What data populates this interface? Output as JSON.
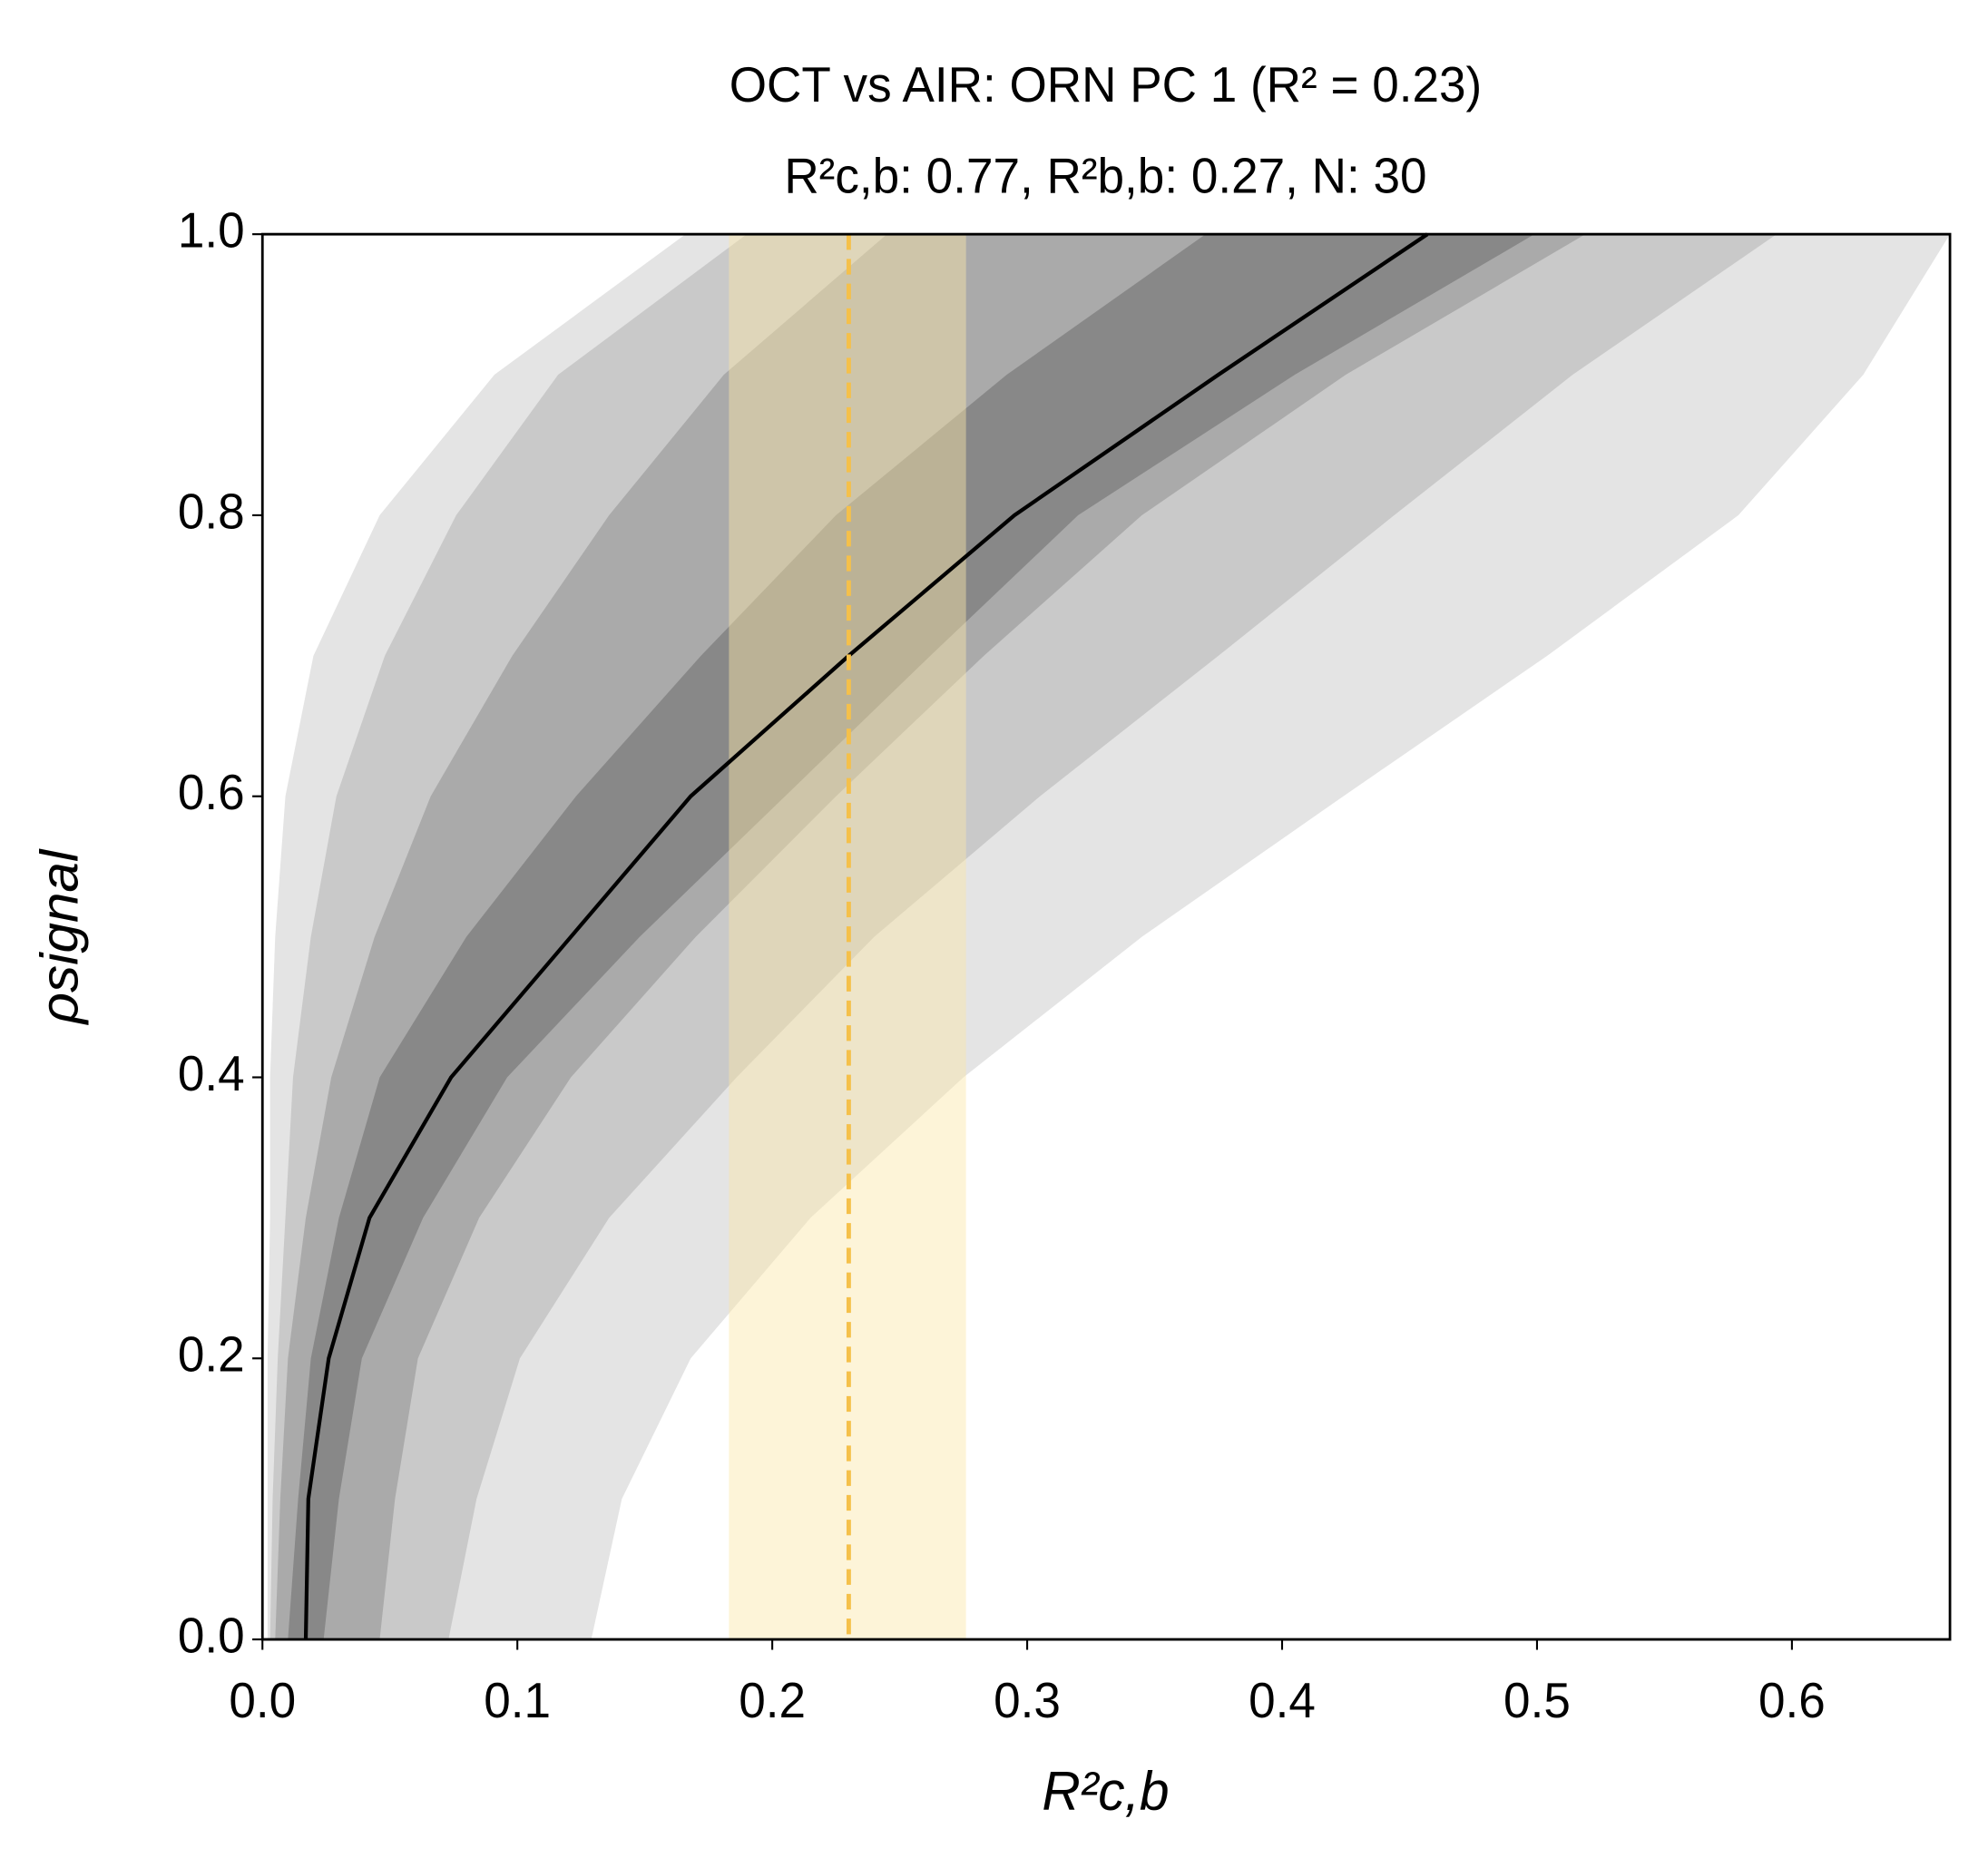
{
  "chart_data": {
    "type": "band",
    "title": "OCT vs AIR: ORN PC 1 (R² = 0.23)",
    "subtitle": "R²c,b: 0.77, R²b,b: 0.27, N: 30",
    "xlabel": "R²c,b",
    "ylabel": "ρsignal",
    "xlim": [
      0,
      0.662
    ],
    "ylim": [
      0,
      1
    ],
    "xticks": [
      {
        "value": 0,
        "label": "0.0"
      },
      0.1,
      0.2,
      0.3,
      0.4,
      0.5,
      0.6
    ],
    "yticks": [
      {
        "value": 0,
        "label": "0.0"
      },
      0.2,
      0.4,
      0.6,
      0.8,
      {
        "value": 1,
        "label": "1.0"
      }
    ],
    "y": [
      0,
      0.1,
      0.2,
      0.3,
      0.4,
      0.5,
      0.6,
      0.7,
      0.8,
      0.9,
      1.0
    ],
    "bands": [
      {
        "color": "#e4e4e4",
        "lower": [
          0.002,
          0.002,
          0.002,
          0.003,
          0.003,
          0.005,
          0.009,
          0.02,
          0.046,
          0.091,
          0.166
        ],
        "upper": [
          0.129,
          0.141,
          0.168,
          0.215,
          0.275,
          0.345,
          0.424,
          0.504,
          0.579,
          0.628,
          0.662
        ]
      },
      {
        "color": "#c9c9c9",
        "lower": [
          0.003,
          0.004,
          0.006,
          0.009,
          0.012,
          0.019,
          0.029,
          0.048,
          0.076,
          0.116,
          0.19
        ],
        "upper": [
          0.073,
          0.084,
          0.101,
          0.136,
          0.186,
          0.24,
          0.305,
          0.375,
          0.444,
          0.514,
          0.594
        ]
      },
      {
        "color": "#aaaaaa",
        "lower": [
          0.005,
          0.007,
          0.01,
          0.017,
          0.027,
          0.044,
          0.066,
          0.098,
          0.136,
          0.181,
          0.245
        ],
        "upper": [
          0.046,
          0.052,
          0.061,
          0.085,
          0.121,
          0.17,
          0.225,
          0.283,
          0.345,
          0.425,
          0.519
        ]
      },
      {
        "color": "#888888",
        "lower": [
          0.01,
          0.014,
          0.019,
          0.03,
          0.046,
          0.08,
          0.123,
          0.172,
          0.225,
          0.292,
          0.37
        ],
        "upper": [
          0.024,
          0.03,
          0.039,
          0.063,
          0.096,
          0.148,
          0.205,
          0.262,
          0.32,
          0.405,
          0.499
        ]
      }
    ],
    "median": {
      "color": "#000000",
      "values": [
        0.017,
        0.018,
        0.026,
        0.042,
        0.074,
        0.121,
        0.168,
        0.23,
        0.295,
        0.375,
        0.457
      ]
    },
    "span": {
      "color": "#fbe6a8",
      "range": [
        0.183,
        0.276
      ]
    },
    "vline": {
      "color": "#f5c04a",
      "value": 0.23
    }
  }
}
